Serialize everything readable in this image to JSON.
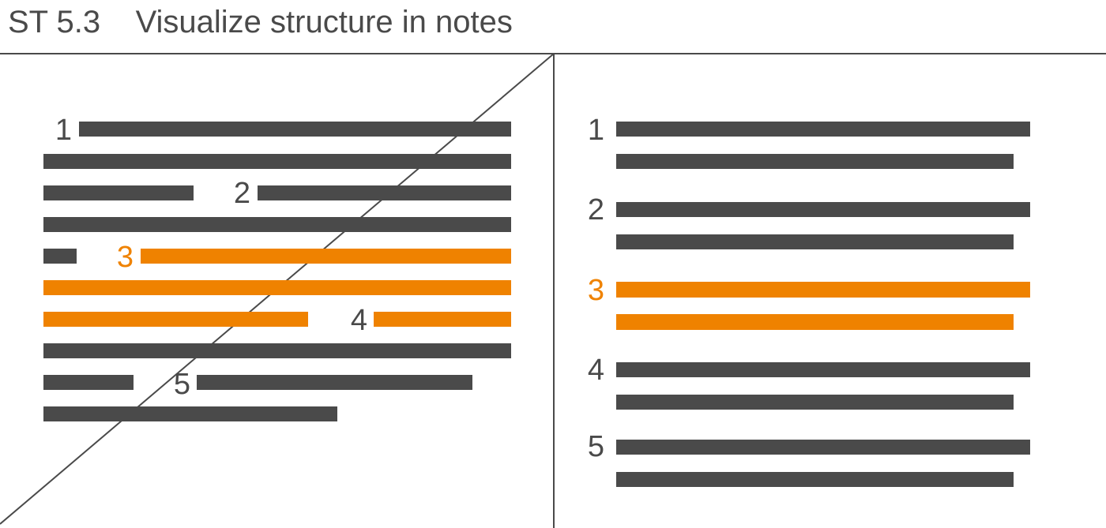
{
  "title": "ST 5.3    Visualize structure in notes",
  "colors": {
    "text": "#4a4a4a",
    "bar": "#4a4a4a",
    "highlight": "#ef8200",
    "rule": "#4a4a4a"
  },
  "left_panel": {
    "labels": [
      {
        "text": "1",
        "highlight": false
      },
      {
        "text": "2",
        "highlight": false
      },
      {
        "text": "3",
        "highlight": true
      },
      {
        "text": "4",
        "highlight": false
      },
      {
        "text": "5",
        "highlight": false
      }
    ]
  },
  "right_panel": {
    "sections": [
      {
        "label": "1",
        "highlight": false
      },
      {
        "label": "2",
        "highlight": false
      },
      {
        "label": "3",
        "highlight": true
      },
      {
        "label": "4",
        "highlight": false
      },
      {
        "label": "5",
        "highlight": false
      }
    ]
  }
}
